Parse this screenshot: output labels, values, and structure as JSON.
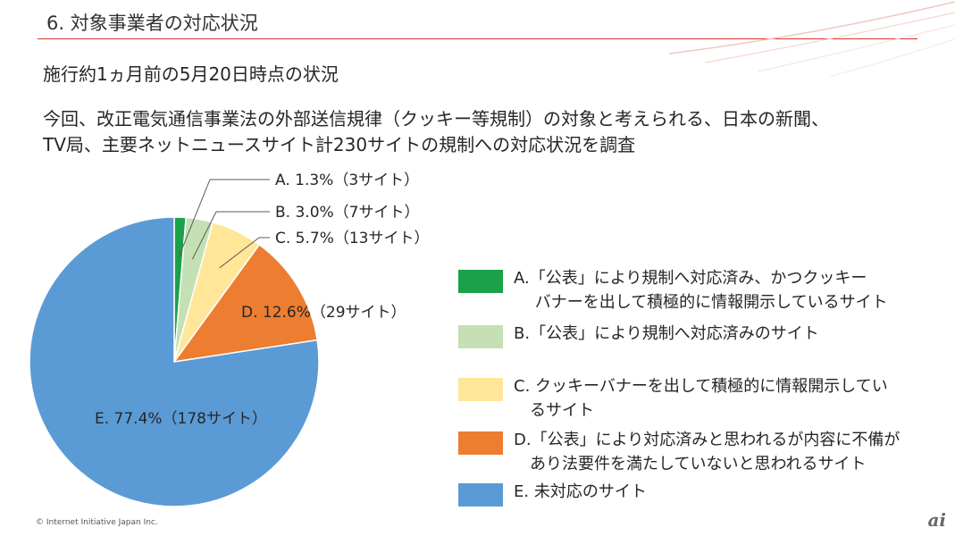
{
  "header": {
    "title": "6. 対象事業者の対応状況"
  },
  "subtitle": "施行約1ヵ月前の5月20日時点の状況",
  "description": {
    "line1": "今回、改正電気通信事業法の外部送信規律（クッキー等規制）の対象と考えられる、日本の新聞、",
    "line2": "TV局、主要ネットニュースサイト計230サイトの規制への対応状況を調査"
  },
  "chart_data": {
    "type": "pie",
    "title": "",
    "total_sites": 230,
    "categories": [
      "A",
      "B",
      "C",
      "D",
      "E"
    ],
    "values": [
      1.3,
      3.0,
      5.7,
      12.6,
      77.4
    ],
    "counts": [
      3,
      7,
      13,
      29,
      178
    ],
    "colors": [
      "#1aa14a",
      "#c5e0b4",
      "#ffe699",
      "#ed7d31",
      "#5b9bd5"
    ],
    "slice_labels": [
      "A. 1.3%（3サイト）",
      "B. 3.0%（7サイト）",
      "C. 5.7%（13サイト）",
      "D. 12.6%（29サイト）",
      "E. 77.4%（178サイト）"
    ],
    "legend": [
      {
        "line1": "A.「公表」により規制へ対応済み、かつクッキー",
        "line2": "　 バナーを出して積極的に情報開示しているサイト"
      },
      {
        "line1": "B.「公表」により規制へ対応済みのサイト",
        "line2": ""
      },
      {
        "line1": "C.  クッキーバナーを出して積極的に情報開示してい",
        "line2": "　るサイト"
      },
      {
        "line1": "D.「公表」により対応済みと思われるが内容に不備が",
        "line2": "　あり法要件を満たしていないと思われるサイト"
      },
      {
        "line1": "E.  未対応のサイト",
        "line2": ""
      }
    ]
  },
  "footer": {
    "copyright": "© Internet Initiative Japan Inc.",
    "logo": "ai"
  }
}
